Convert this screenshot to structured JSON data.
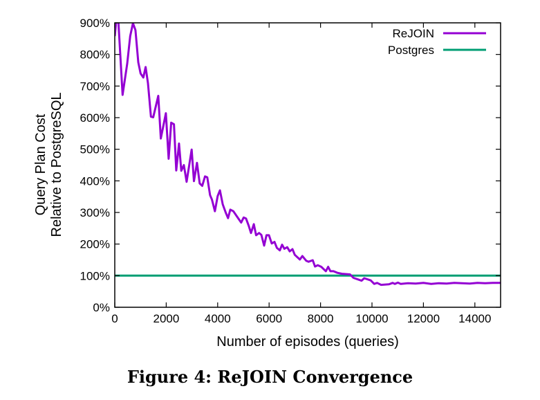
{
  "chart_data": {
    "type": "line",
    "caption": "Figure 4: ReJOIN Convergence",
    "xlabel": "Number of episodes (queries)",
    "ylabel": [
      "Query Plan Cost",
      "Relative to PostgreSQL"
    ],
    "xlim": [
      0,
      15000
    ],
    "ylim": [
      0,
      900
    ],
    "xticks": [
      0,
      2000,
      4000,
      6000,
      8000,
      10000,
      12000,
      14000
    ],
    "yticks": [
      0,
      100,
      200,
      300,
      400,
      500,
      600,
      700,
      800,
      900
    ],
    "ytick_labels": [
      "0%",
      "100%",
      "200%",
      "300%",
      "400%",
      "500%",
      "600%",
      "700%",
      "800%",
      "900%"
    ],
    "grid": false,
    "legend_position": "top-right",
    "series": [
      {
        "name": "ReJOIN",
        "color": "#9400d3",
        "x": [
          0,
          107,
          303,
          483,
          600,
          707,
          805,
          913,
          1003,
          1110,
          1200,
          1289,
          1405,
          1495,
          1691,
          1790,
          1987,
          2094,
          2193,
          2300,
          2389,
          2497,
          2586,
          2685,
          2792,
          2988,
          3079,
          3195,
          3302,
          3401,
          3509,
          3597,
          3705,
          3777,
          3893,
          4000,
          4089,
          4196,
          4313,
          4403,
          4492,
          4609,
          4760,
          4913,
          5012,
          5101,
          5208,
          5297,
          5405,
          5495,
          5611,
          5700,
          5807,
          5897,
          5995,
          6102,
          6210,
          6300,
          6416,
          6505,
          6595,
          6703,
          6801,
          6908,
          6998,
          7195,
          7294,
          7445,
          7534,
          7696,
          7785,
          7893,
          8027,
          8206,
          8295,
          8384,
          8502,
          8653,
          8832,
          9146,
          9280,
          9459,
          9593,
          9700,
          9952,
          10086,
          10201,
          10354,
          10666,
          10800,
          10889,
          11007,
          11114,
          11400,
          11700,
          12000,
          12300,
          12600,
          12900,
          13200,
          13500,
          13800,
          14100,
          14400,
          14700,
          15000
        ],
        "y": [
          858,
          950,
          672,
          771,
          858,
          899,
          877,
          775,
          740,
          727,
          760,
          709,
          603,
          601,
          669,
          534,
          614,
          470,
          584,
          579,
          433,
          518,
          432,
          450,
          397,
          499,
          399,
          457,
          392,
          384,
          414,
          411,
          355,
          341,
          304,
          352,
          370,
          326,
          300,
          282,
          309,
          304,
          286,
          268,
          284,
          281,
          258,
          235,
          263,
          228,
          235,
          229,
          195,
          228,
          228,
          202,
          207,
          188,
          180,
          198,
          185,
          190,
          177,
          184,
          166,
          151,
          162,
          147,
          144,
          149,
          129,
          133,
          128,
          114,
          128,
          114,
          114,
          109,
          106,
          104,
          93,
          88,
          84,
          92,
          85,
          74,
          77,
          71,
          73,
          77,
          74,
          78,
          74,
          76,
          75,
          77,
          74,
          76,
          75,
          77,
          76,
          75,
          77,
          76,
          77,
          77
        ]
      },
      {
        "name": "Postgres",
        "color": "#009e73",
        "x": [
          0,
          15000
        ],
        "y": [
          100,
          100
        ]
      }
    ]
  }
}
